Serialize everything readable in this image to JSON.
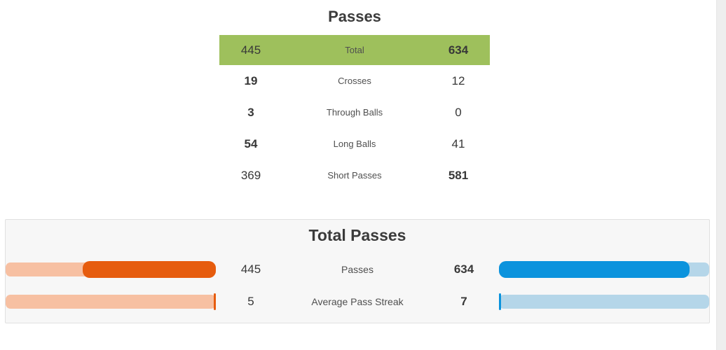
{
  "colors": {
    "highlight_green": "#9ec05c",
    "home_fill": "#e65c0e",
    "home_track": "#f7c0a2",
    "away_fill": "#0b93dd",
    "away_track": "#b5d6e9",
    "card_bg": "#f7f7f7",
    "card_border": "#e0e0e0",
    "title_text": "#3b3b3b",
    "value_text": "#383838",
    "label_text": "#4f4f4f",
    "scrollbar_track": "#eeeeee"
  },
  "passes_table": {
    "title": "Passes",
    "rows": [
      {
        "home": "445",
        "label": "Total",
        "away": "634",
        "winner": "away",
        "highlighted": true
      },
      {
        "home": "19",
        "label": "Crosses",
        "away": "12",
        "winner": "home",
        "highlighted": false
      },
      {
        "home": "3",
        "label": "Through Balls",
        "away": "0",
        "winner": "home",
        "highlighted": false
      },
      {
        "home": "54",
        "label": "Long Balls",
        "away": "41",
        "winner": "home",
        "highlighted": false
      },
      {
        "home": "369",
        "label": "Short Passes",
        "away": "581",
        "winner": "away",
        "highlighted": false
      }
    ]
  },
  "total_passes_card": {
    "title": "Total Passes",
    "rows": [
      {
        "home": "445",
        "label": "Passes",
        "away": "634",
        "winner": "away",
        "home_fill_pct": 63.5,
        "away_fill_pct": 90.5
      },
      {
        "home": "5",
        "label": "Average Pass Streak",
        "away": "7",
        "winner": "away",
        "home_fill_pct": 1,
        "away_fill_pct": 1
      }
    ]
  }
}
